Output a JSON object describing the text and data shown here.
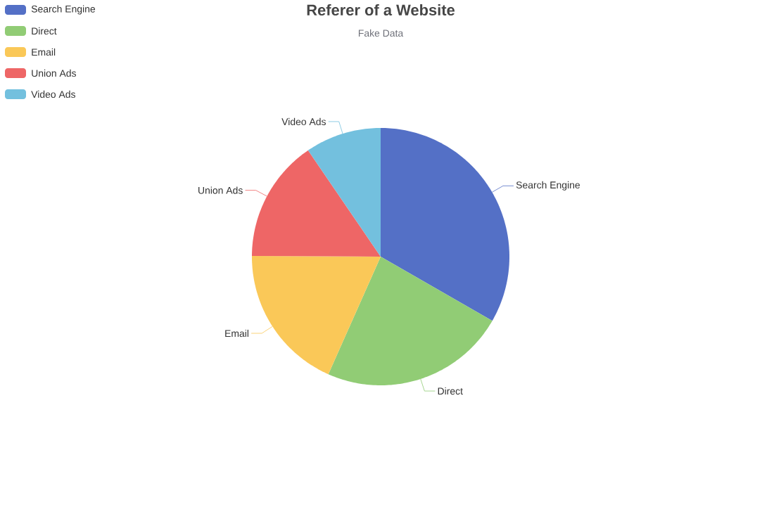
{
  "chart_data": {
    "type": "pie",
    "title": "Referer of a Website",
    "subtitle": "Fake Data",
    "categories": [
      "Search Engine",
      "Direct",
      "Email",
      "Union Ads",
      "Video Ads"
    ],
    "values": [
      33.3,
      23.36,
      18.43,
      15.38,
      9.53
    ],
    "colors": [
      "#5470c6",
      "#91cc75",
      "#fac858",
      "#ee6666",
      "#73c0de"
    ],
    "legend": "top left"
  }
}
